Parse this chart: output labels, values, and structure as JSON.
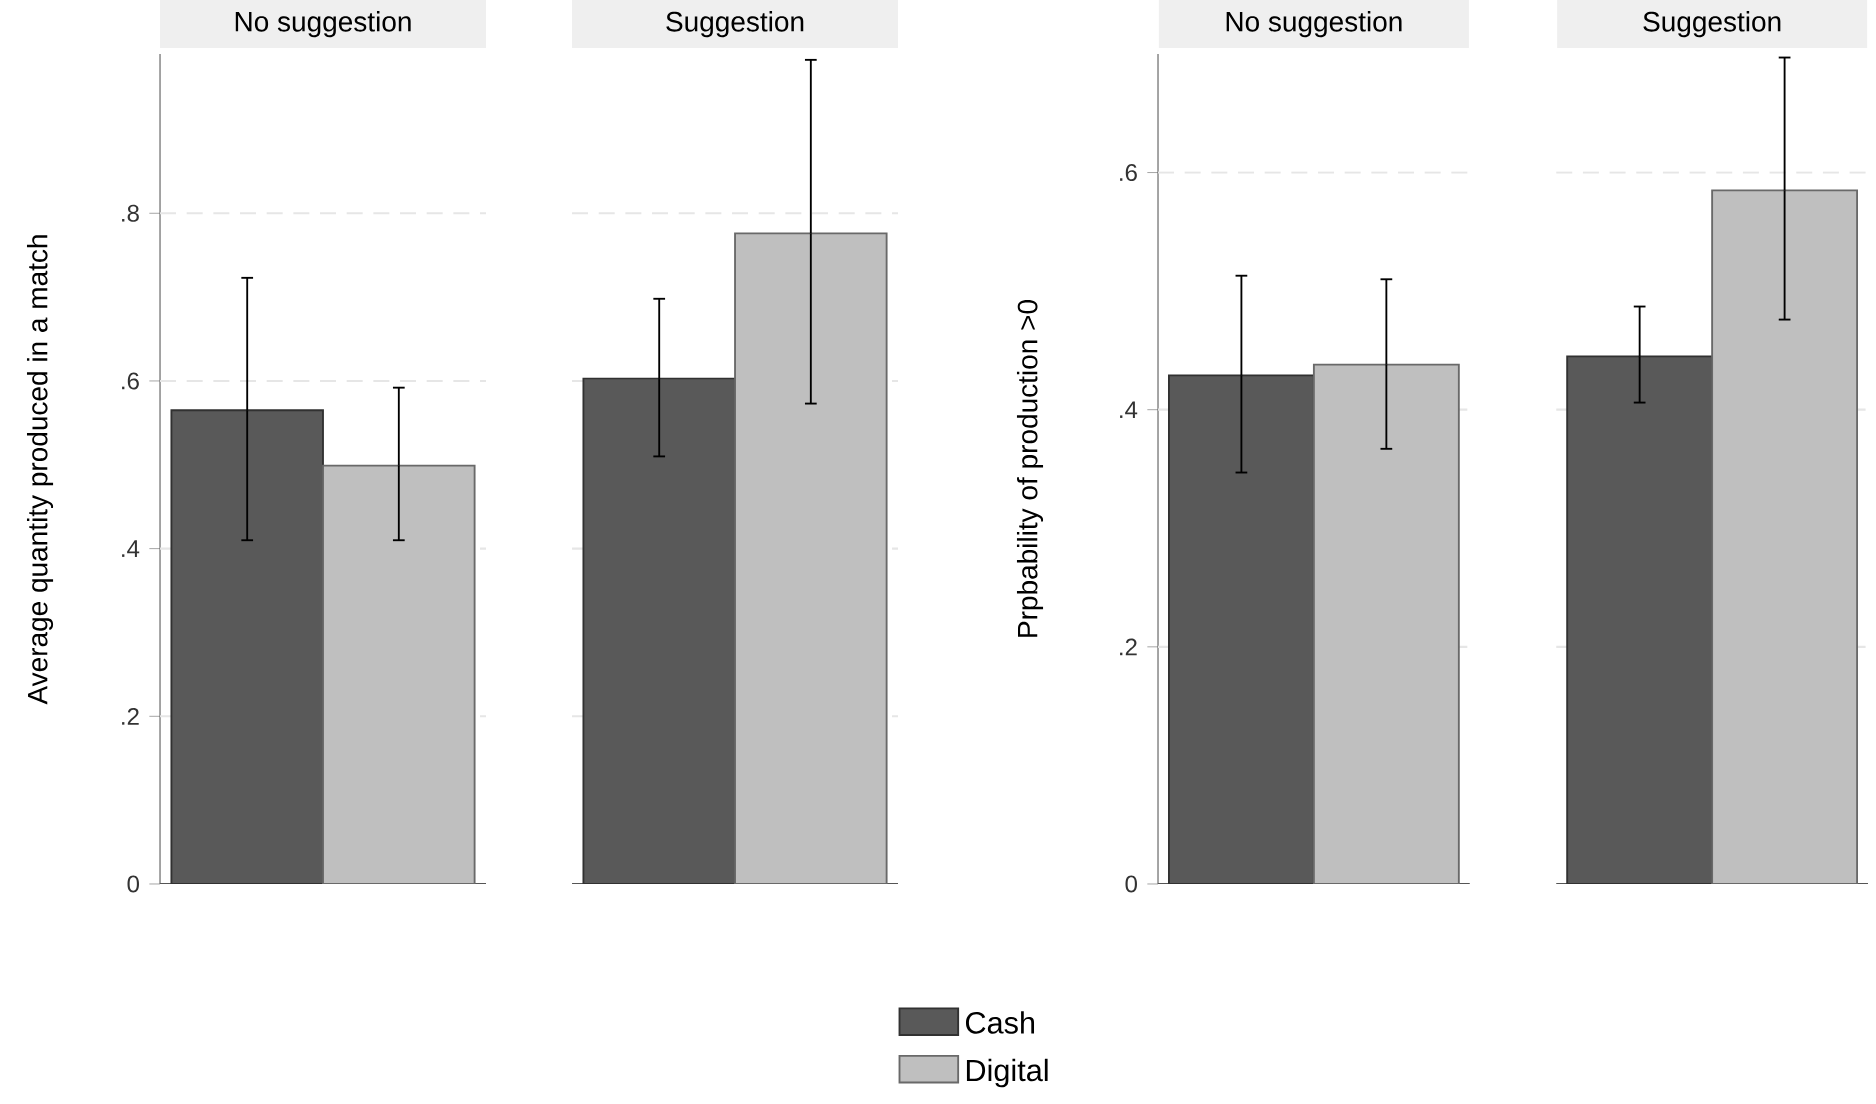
{
  "chart_data": [
    {
      "type": "bar",
      "ylabel": "Average quantity produced in a match",
      "categories": [
        "No suggestion",
        "Suggestion"
      ],
      "series": [
        {
          "name": "Cash",
          "color": "#595959",
          "values": [
            0.565,
            0.603
          ],
          "errors": [
            [
              0.41,
              0.723
            ],
            [
              0.51,
              0.698
            ]
          ]
        },
        {
          "name": "Digital",
          "color": "#bfbfbf",
          "values": [
            0.499,
            0.776
          ],
          "errors": [
            [
              0.41,
              0.592
            ],
            [
              0.573,
              0.983
            ]
          ]
        }
      ],
      "ylim": [
        0,
        0.99
      ],
      "yticks": [
        0,
        {
          "value": 0.2,
          "label": ".2"
        },
        {
          "value": 0.4,
          "label": ".4"
        },
        {
          "value": 0.6,
          "label": ".6"
        },
        {
          "value": 0.8,
          "label": ".8"
        }
      ],
      "grid": "y",
      "legend": "bottom"
    },
    {
      "type": "bar",
      "ylabel": "Prpbability of production >0",
      "categories": [
        "No suggestion",
        "Suggestion"
      ],
      "series": [
        {
          "color": "#595959",
          "values": [
            0.429,
            0.445
          ],
          "errors": [
            [
              0.347,
              0.513
            ],
            [
              0.406,
              0.487
            ]
          ]
        },
        {
          "color": "#bfbfbf",
          "values": [
            0.438,
            0.585
          ],
          "errors": [
            [
              0.367,
              0.51
            ],
            [
              0.476,
              0.697
            ]
          ]
        }
      ],
      "ylim": [
        0,
        0.7
      ],
      "yticks": [
        0,
        {
          "value": 0.2,
          "label": ".2"
        },
        {
          "value": 0.4,
          "label": ".4"
        },
        {
          "value": 0.6,
          "label": ".6"
        }
      ],
      "grid": "y"
    }
  ]
}
